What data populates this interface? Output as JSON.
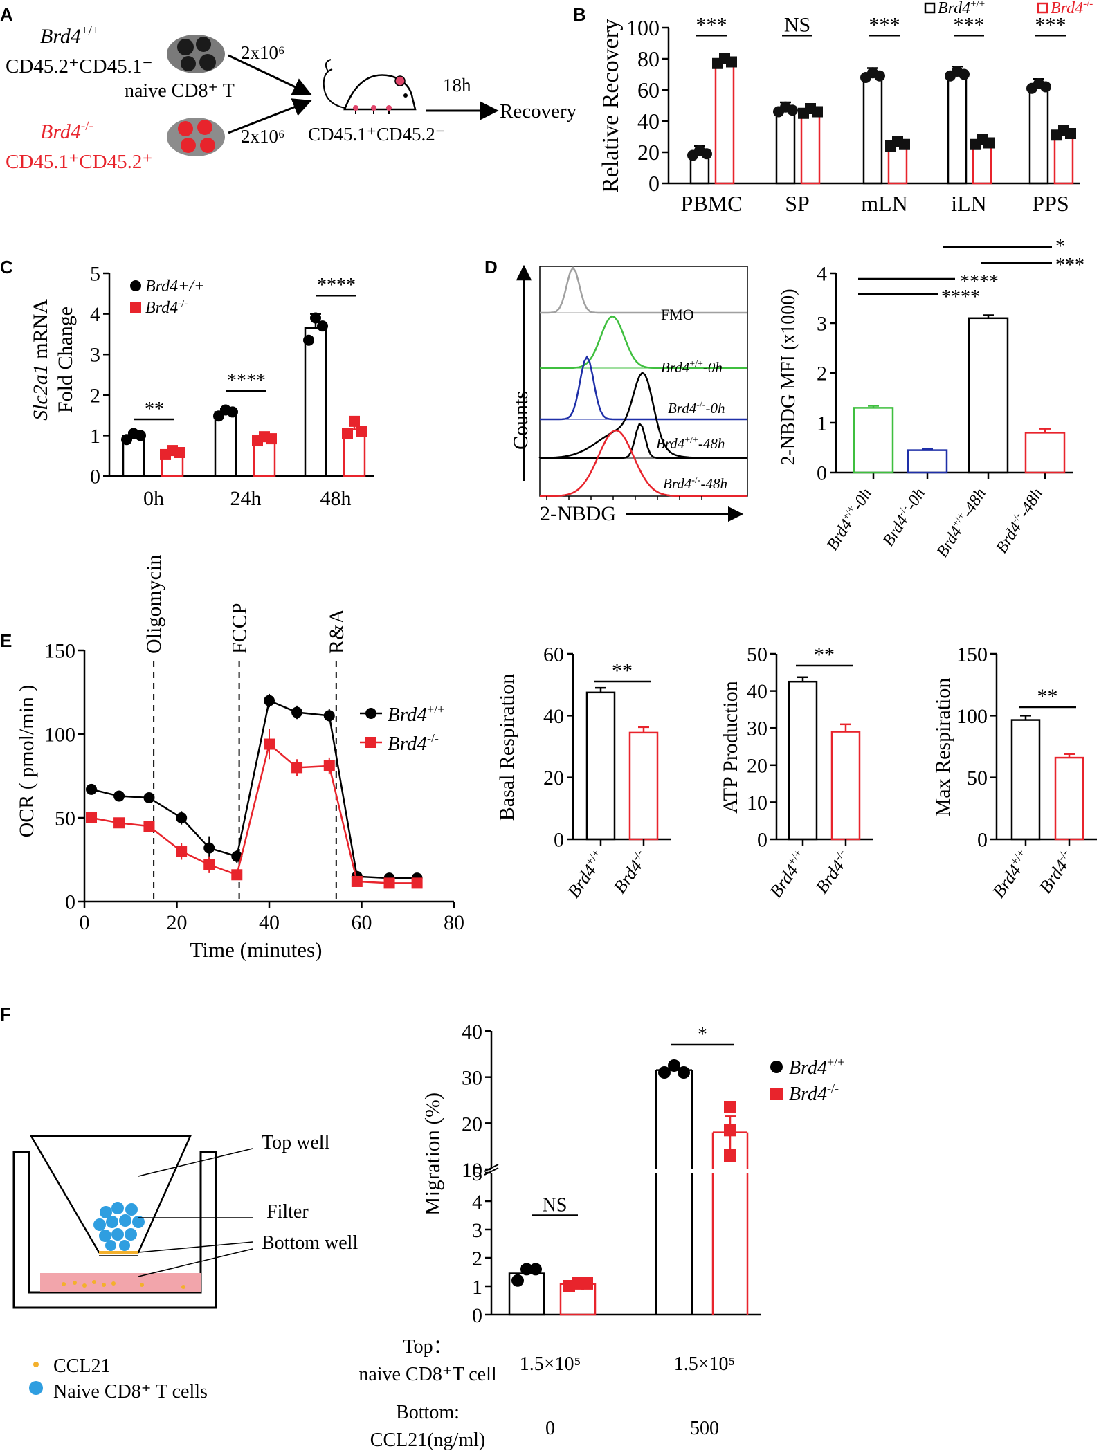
{
  "colors": {
    "wt": "#000000",
    "ko": "#e8242c",
    "fmo": "#a0a0a0",
    "green": "#3fbf3f",
    "blue": "#1e2fa8",
    "cell_blue": "#2f9ee0",
    "ccl21": "#f3b02c",
    "pink": "#f2a5ab"
  },
  "genotypes": {
    "wt": "Brd4",
    "wt_sup": "+/+",
    "ko": "Brd4",
    "ko_sup": "-/-"
  },
  "panel_a": {
    "letter": "A",
    "wt_line1": "Brd4",
    "wt_line1_sup": "+/+",
    "wt_line2": "CD45.2⁺CD45.1⁻",
    "ko_line1": "Brd4",
    "ko_line1_sup": "-/-",
    "ko_line2": "CD45.1⁺CD45.2⁺",
    "cell_type": "naive CD8⁺ T",
    "dose_top": "2x10⁶",
    "dose_bottom": "2x10⁶",
    "recipient": "CD45.1⁺CD45.2⁻",
    "time": "18h",
    "readout": "Recovery"
  },
  "chart_data": [
    {
      "id": "B",
      "letter": "B",
      "type": "bar",
      "ylabel": "Relative Recovery",
      "ylim": [
        0,
        100
      ],
      "yticks": [
        0,
        20,
        40,
        60,
        80,
        100
      ],
      "categories": [
        "PBMC",
        "SP",
        "mLN",
        "iLN",
        "PPS"
      ],
      "series": [
        {
          "name": "Brd4+/+",
          "values": [
            20,
            48,
            70,
            71,
            63
          ]
        },
        {
          "name": "Brd4-/-",
          "values": [
            79,
            47,
            26,
            27,
            33
          ]
        }
      ],
      "significance": [
        "***",
        "NS",
        "***",
        "***",
        "***"
      ],
      "legend": [
        "Brd4+/+",
        "Brd4-/-"
      ],
      "legend_position": "top-right"
    },
    {
      "id": "C",
      "letter": "C",
      "type": "bar",
      "ylabel_gene": "Slc2a1",
      "ylabel_rest": " mRNA",
      "ylabel2": "Fold Change",
      "ylim": [
        0,
        5
      ],
      "yticks": [
        0,
        1,
        2,
        3,
        4,
        5
      ],
      "categories": [
        "0h",
        "24h",
        "48h"
      ],
      "series": [
        {
          "name": "Brd4+/+",
          "values": [
            1.0,
            1.58,
            3.65
          ]
        },
        {
          "name": "Brd4-/-",
          "values": [
            0.58,
            0.92,
            1.15
          ]
        }
      ],
      "significance": [
        "**",
        "****",
        "****"
      ],
      "legend": [
        "Brd4+/+",
        "Brd4-/-"
      ],
      "legend_position": "top-left"
    },
    {
      "id": "D_hist",
      "letter": "D",
      "type": "histogram",
      "xlabel": "2-NBDG",
      "ylabel": "Counts",
      "tracks": [
        "FMO",
        "Brd4+/+-0h",
        "Brd4-/--0h",
        "Brd4+/+-48h",
        "Brd4-/--48h"
      ]
    },
    {
      "id": "D_bar",
      "type": "bar",
      "ylabel": "2-NBDG MFI (x1000)",
      "ylim": [
        0,
        4
      ],
      "yticks": [
        0,
        1,
        2,
        3,
        4
      ],
      "categories": [
        "Brd4+/+-0h",
        "Brd4-/--0h",
        "Brd4+/+-48h",
        "Brd4-/--48h"
      ],
      "values": [
        1.3,
        0.45,
        3.1,
        0.8
      ],
      "errors": [
        0.04,
        0.03,
        0.06,
        0.08
      ],
      "significance": [
        {
          "pair": "0h vs 0h",
          "label": "****"
        },
        {
          "pair": "0h vs 48h",
          "label": "****"
        },
        {
          "pair": "0h KO vs 48h KO",
          "label": "*"
        },
        {
          "pair": "48h vs 48h",
          "label": "***"
        }
      ]
    },
    {
      "id": "E_line",
      "letter": "E",
      "type": "line",
      "xlabel": "Time (minutes)",
      "ylabel": "OCR ( pmol/min )",
      "xlim": [
        0,
        80
      ],
      "ylim": [
        0,
        150
      ],
      "xticks": [
        0,
        20,
        40,
        60,
        80
      ],
      "yticks": [
        0,
        50,
        100,
        150
      ],
      "markers": [
        {
          "label": "Oligomycin",
          "x": 15
        },
        {
          "label": "FCCP",
          "x": 33.5
        },
        {
          "label": "R&A",
          "x": 54.5
        }
      ],
      "x": [
        1.5,
        7.5,
        14,
        21,
        27,
        33,
        40,
        46,
        53,
        59,
        66,
        72
      ],
      "series": [
        {
          "name": "Brd4+/+",
          "values": [
            67,
            63,
            62,
            50,
            32,
            27,
            120,
            113,
            111,
            15,
            14,
            14
          ]
        },
        {
          "name": "Brd4-/-",
          "values": [
            50,
            47,
            45,
            30,
            22,
            16,
            94,
            80,
            81,
            12,
            11,
            11
          ]
        }
      ],
      "legend": [
        "Brd4+/+",
        "Brd4-/-"
      ]
    },
    {
      "id": "E_basal",
      "type": "bar",
      "ylabel": "Basal Respiration",
      "ylim": [
        0,
        60
      ],
      "yticks": [
        0,
        20,
        40,
        60
      ],
      "categories": [
        "Brd4+/+",
        "Brd4-/-"
      ],
      "values": [
        47.5,
        34.5
      ],
      "errors": [
        1.5,
        1.8
      ],
      "significance": "**"
    },
    {
      "id": "E_atp",
      "type": "bar",
      "ylabel": "ATP Production",
      "ylim": [
        0,
        50
      ],
      "yticks": [
        0,
        10,
        20,
        30,
        40,
        50
      ],
      "categories": [
        "Brd4+/+",
        "Brd4-/-"
      ],
      "values": [
        42.5,
        29
      ],
      "errors": [
        1.2,
        2.0
      ],
      "significance": "**"
    },
    {
      "id": "E_max",
      "type": "bar",
      "ylabel": "Max Respiration",
      "ylim": [
        0,
        150
      ],
      "yticks": [
        0,
        50,
        100,
        150
      ],
      "categories": [
        "Brd4+/+",
        "Brd4-/-"
      ],
      "values": [
        96.5,
        66
      ],
      "errors": [
        3.5,
        3.0
      ],
      "significance": "**"
    },
    {
      "id": "F",
      "letter": "F",
      "type": "bar",
      "ylabel": "Migration (%)",
      "y_lower": [
        0,
        5
      ],
      "y_lower_ticks": [
        0,
        1,
        2,
        3,
        4,
        5
      ],
      "y_upper": [
        10,
        40
      ],
      "y_upper_ticks": [
        10,
        20,
        30,
        40
      ],
      "groups": [
        "CCL21 0",
        "CCL21 500"
      ],
      "series": [
        {
          "name": "Brd4+/+",
          "values": [
            1.45,
            31.5
          ]
        },
        {
          "name": "Brd4-/-",
          "values": [
            1.08,
            18
          ]
        }
      ],
      "significance": [
        "NS",
        "*"
      ],
      "legend": [
        "Brd4+/+",
        "Brd4-/-"
      ]
    }
  ],
  "panel_f": {
    "top_well": "Top well",
    "filter": "Filter",
    "bottom_well": "Bottom well",
    "legend_ccl21": "CCL21",
    "legend_cells": "Naive CD8⁺ T cells",
    "row1_label1": "Top：",
    "row1_label2": "naive CD8⁺T cell",
    "row1_val1": "1.5×10⁵",
    "row1_val2": "1.5×10⁵",
    "row2_label1": "Bottom:",
    "row2_label2": "CCL21(ng/ml)",
    "row2_val1": "0",
    "row2_val2": "500"
  }
}
